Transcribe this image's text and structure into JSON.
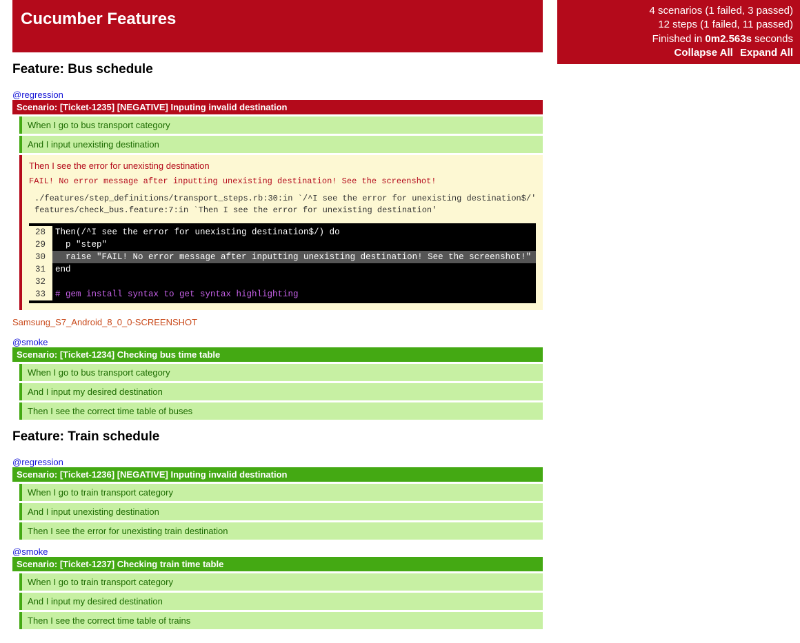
{
  "header": {
    "title": "Cucumber Features"
  },
  "summary": {
    "scenarios_line": "4 scenarios (1 failed, 3 passed)",
    "steps_line": "12 steps (1 failed, 11 passed)",
    "time_prefix": "Finished in ",
    "time_bold": "0m2.563s",
    "time_suffix": " seconds",
    "collapse": "Collapse All",
    "expand": "Expand All"
  },
  "colors": {
    "failed_bg": "#b40a1b",
    "passed_bg": "#44a913",
    "step_passed_bg": "#c7f0a3",
    "failed_block_bg": "#fdf8d3",
    "code_bg": "#000000"
  },
  "features": [
    {
      "title": "Feature: Bus schedule",
      "scenarios": [
        {
          "tag": "@regression",
          "status": "failed",
          "title": "Scenario: [Ticket-1235] [NEGATIVE] Inputing invalid destination",
          "steps": [
            {
              "status": "passed",
              "text": "When I go to bus transport category"
            },
            {
              "status": "passed",
              "text": "And I input unexisting destination"
            },
            {
              "status": "failed",
              "text": "Then I see the error for unexisting destination",
              "fail_message": "FAIL! No error message after inputting unexisting destination! See the screenshot!",
              "backtrace": "./features/step_definitions/transport_steps.rb:30:in `/^I see the error for unexisting destination$/'\nfeatures/check_bus.feature:7:in `Then I see the error for unexisting destination'",
              "code": [
                {
                  "n": "28",
                  "t": "Then(/^I see the error for unexisting destination$/) do",
                  "hl": false
                },
                {
                  "n": "29",
                  "t": "  p \"step\"",
                  "hl": false
                },
                {
                  "n": "30",
                  "t": "  raise \"FAIL! No error message after inputting unexisting destination! See the screenshot!\"",
                  "hl": true
                },
                {
                  "n": "31",
                  "t": "end",
                  "hl": false
                },
                {
                  "n": "32",
                  "t": "",
                  "hl": false
                },
                {
                  "n": "33",
                  "t": "# gem install syntax to get syntax highlighting",
                  "hl": false,
                  "comment": true
                }
              ]
            }
          ],
          "screenshot_link": "Samsung_S7_Android_8_0_0-SCREENSHOT"
        },
        {
          "tag": "@smoke",
          "status": "passed",
          "title": "Scenario: [Ticket-1234] Checking bus time table",
          "steps": [
            {
              "status": "passed",
              "text": "When I go to bus transport category"
            },
            {
              "status": "passed",
              "text": "And I input my desired destination"
            },
            {
              "status": "passed",
              "text": "Then I see the correct time table of buses"
            }
          ]
        }
      ]
    },
    {
      "title": "Feature: Train schedule",
      "scenarios": [
        {
          "tag": "@regression",
          "status": "passed",
          "title": "Scenario: [Ticket-1236] [NEGATIVE] Inputing invalid destination",
          "steps": [
            {
              "status": "passed",
              "text": "When I go to train transport category"
            },
            {
              "status": "passed",
              "text": "And I input unexisting destination"
            },
            {
              "status": "passed",
              "text": "Then I see the error for unexisting train destination"
            }
          ]
        },
        {
          "tag": "@smoke",
          "status": "passed",
          "title": "Scenario: [Ticket-1237] Checking train time table",
          "steps": [
            {
              "status": "passed",
              "text": "When I go to train transport category"
            },
            {
              "status": "passed",
              "text": "And I input my desired destination"
            },
            {
              "status": "passed",
              "text": "Then I see the correct time table of trains"
            }
          ]
        }
      ]
    }
  ]
}
